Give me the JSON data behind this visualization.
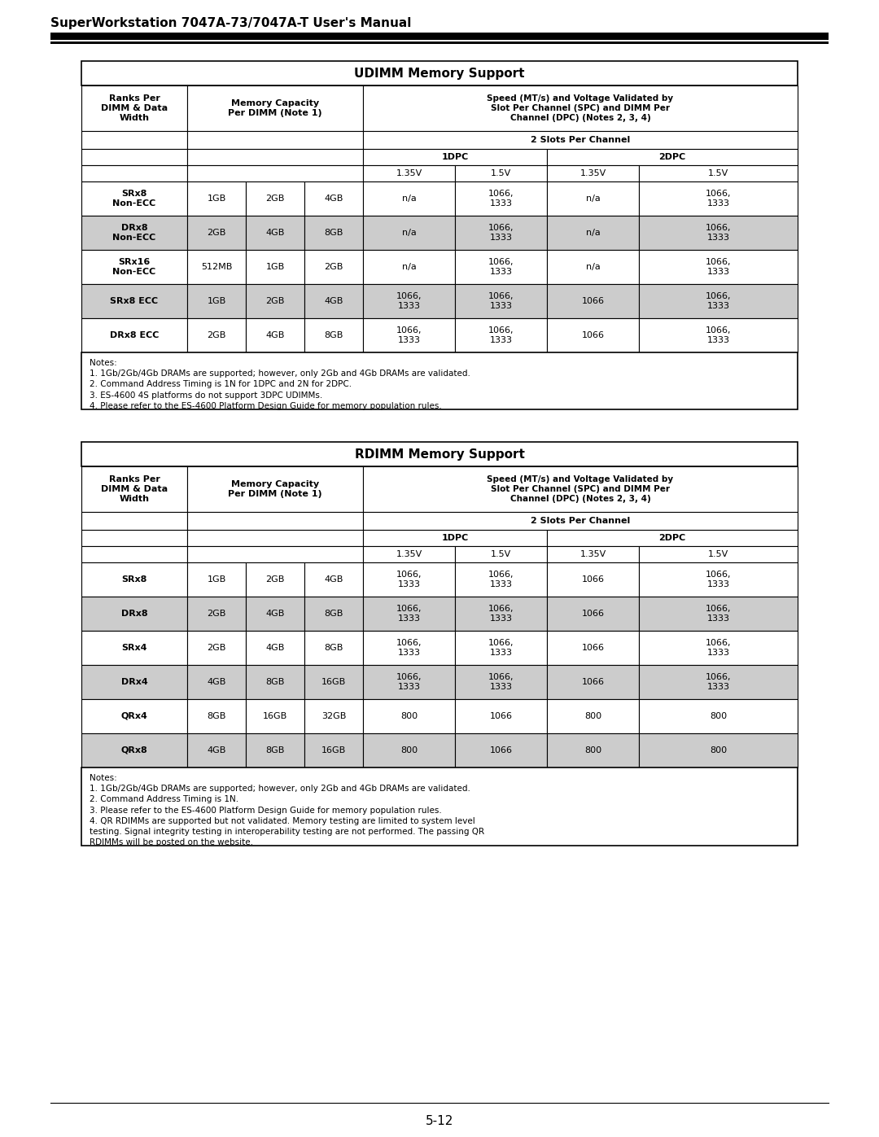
{
  "page_title": "SuperWorkstation 7047A-73/7047A-T User's Manual",
  "page_number": "5-12",
  "col_header1": "Ranks Per\nDIMM & Data\nWidth",
  "col_header2": "Memory Capacity\nPer DIMM (Note 1)",
  "col_header3": "Speed (MT/s) and Voltage Validated by\nSlot Per Channel (SPC) and DIMM Per\nChannel (DPC) (Notes 2, 3, 4)",
  "slots_header": "2 Slots Per Channel",
  "dpc1_header": "1DPC",
  "dpc2_header": "2DPC",
  "voltage_labels": [
    "1.35V",
    "1.5V",
    "1.35V",
    "1.5V"
  ],
  "udimm_title": "UDIMM Memory Support",
  "udimm_rows": [
    {
      "name": "SRx8\nNon-ECC",
      "cap1": "1GB",
      "cap2": "2GB",
      "cap3": "4GB",
      "v1": "n/a",
      "v2": "1066,\n1333",
      "v3": "n/a",
      "v4": "1066,\n1333",
      "shaded": false
    },
    {
      "name": "DRx8\nNon-ECC",
      "cap1": "2GB",
      "cap2": "4GB",
      "cap3": "8GB",
      "v1": "n/a",
      "v2": "1066,\n1333",
      "v3": "n/a",
      "v4": "1066,\n1333",
      "shaded": true
    },
    {
      "name": "SRx16\nNon-ECC",
      "cap1": "512MB",
      "cap2": "1GB",
      "cap3": "2GB",
      "v1": "n/a",
      "v2": "1066,\n1333",
      "v3": "n/a",
      "v4": "1066,\n1333",
      "shaded": false
    },
    {
      "name": "SRx8 ECC",
      "cap1": "1GB",
      "cap2": "2GB",
      "cap3": "4GB",
      "v1": "1066,\n1333",
      "v2": "1066,\n1333",
      "v3": "1066",
      "v4": "1066,\n1333",
      "shaded": true
    },
    {
      "name": "DRx8 ECC",
      "cap1": "2GB",
      "cap2": "4GB",
      "cap3": "8GB",
      "v1": "1066,\n1333",
      "v2": "1066,\n1333",
      "v3": "1066",
      "v4": "1066,\n1333",
      "shaded": false
    }
  ],
  "udimm_notes": "Notes:\n1. 1Gb/2Gb/4Gb DRAMs are supported; however, only 2Gb and 4Gb DRAMs are validated.\n2. Command Address Timing is 1N for 1DPC and 2N for 2DPC.\n3. ES-4600 4S platforms do not support 3DPC UDIMMs.\n4. Please refer to the ES-4600 Platform Design Guide for memory population rules.",
  "rdimm_title": "RDIMM Memory Support",
  "rdimm_rows": [
    {
      "name": "SRx8",
      "cap1": "1GB",
      "cap2": "2GB",
      "cap3": "4GB",
      "v1": "1066,\n1333",
      "v2": "1066,\n1333",
      "v3": "1066",
      "v4": "1066,\n1333",
      "shaded": false
    },
    {
      "name": "DRx8",
      "cap1": "2GB",
      "cap2": "4GB",
      "cap3": "8GB",
      "v1": "1066,\n1333",
      "v2": "1066,\n1333",
      "v3": "1066",
      "v4": "1066,\n1333",
      "shaded": true
    },
    {
      "name": "SRx4",
      "cap1": "2GB",
      "cap2": "4GB",
      "cap3": "8GB",
      "v1": "1066,\n1333",
      "v2": "1066,\n1333",
      "v3": "1066",
      "v4": "1066,\n1333",
      "shaded": false
    },
    {
      "name": "DRx4",
      "cap1": "4GB",
      "cap2": "8GB",
      "cap3": "16GB",
      "v1": "1066,\n1333",
      "v2": "1066,\n1333",
      "v3": "1066",
      "v4": "1066,\n1333",
      "shaded": true
    },
    {
      "name": "QRx4",
      "cap1": "8GB",
      "cap2": "16GB",
      "cap3": "32GB",
      "v1": "800",
      "v2": "1066",
      "v3": "800",
      "v4": "800",
      "shaded": false
    },
    {
      "name": "QRx8",
      "cap1": "4GB",
      "cap2": "8GB",
      "cap3": "16GB",
      "v1": "800",
      "v2": "1066",
      "v3": "800",
      "v4": "800",
      "shaded": true
    }
  ],
  "rdimm_notes": "Notes:\n1. 1Gb/2Gb/4Gb DRAMs are supported; however, only 2Gb and 4Gb DRAMs are validated.\n2. Command Address Timing is 1N.\n3. Please refer to the ES-4600 Platform Design Guide for memory population rules.\n4. QR RDIMMs are supported but not validated. Memory testing are limited to system level\ntesting. Signal integrity testing in interoperability testing are not performed. The passing QR\nRDIMMs will be posted on the website.",
  "shaded_color": "#cccccc",
  "title_fontsize": 11,
  "header_fontsize": 8,
  "cell_fontsize": 8,
  "notes_fontsize": 7.5,
  "page_title_fontsize": 11,
  "page_num_fontsize": 11
}
